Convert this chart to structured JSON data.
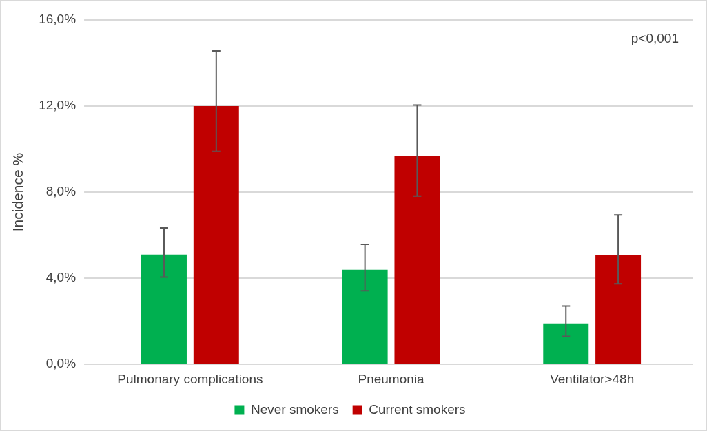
{
  "chart_data": {
    "type": "bar",
    "ylabel": "Incidence %",
    "categories": [
      "Pulmonary complications",
      "Pneumonia",
      "Ventilator>48h"
    ],
    "series": [
      {
        "name": "Never smokers",
        "color": "#00b050",
        "values": [
          5.1,
          4.4,
          1.9
        ],
        "errors": [
          [
            4.05,
            6.34
          ],
          [
            3.42,
            5.57
          ],
          [
            1.3,
            2.71
          ]
        ]
      },
      {
        "name": "Current smokers",
        "color": "#c00000",
        "values": [
          12.0,
          9.7,
          5.07
        ],
        "errors": [
          [
            9.9,
            14.56
          ],
          [
            7.82,
            12.05
          ],
          [
            3.74,
            6.94
          ]
        ]
      }
    ],
    "ylim": [
      0,
      16
    ],
    "yticks": [
      {
        "value": 0,
        "label": "0,0%"
      },
      {
        "value": 4,
        "label": "4,0%"
      },
      {
        "value": 8,
        "label": "8,0%"
      },
      {
        "value": 12,
        "label": "12,0%"
      },
      {
        "value": 16,
        "label": "16,0%"
      }
    ],
    "grid": "y",
    "legend": "bottom",
    "annotations": [
      "p<0,001"
    ]
  }
}
